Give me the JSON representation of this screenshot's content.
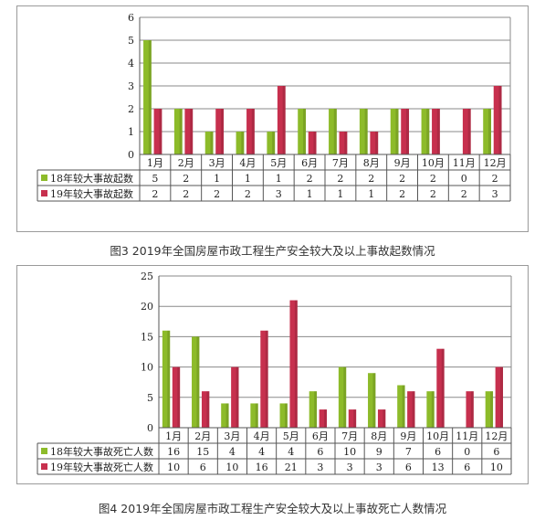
{
  "chart_data": [
    {
      "type": "bar",
      "categories": [
        "1月",
        "2月",
        "3月",
        "4月",
        "5月",
        "6月",
        "7月",
        "8月",
        "9月",
        "10月",
        "11月",
        "12月"
      ],
      "series": [
        {
          "name": "18年较大事故起数",
          "values": [
            5,
            2,
            1,
            1,
            1,
            2,
            2,
            2,
            2,
            2,
            0,
            2
          ],
          "color": "#8dbb2a"
        },
        {
          "name": "19年较大事故起数",
          "values": [
            2,
            2,
            2,
            2,
            3,
            1,
            1,
            1,
            2,
            2,
            2,
            3
          ],
          "color": "#c7304e"
        }
      ],
      "yticks": [
        0,
        1,
        2,
        3,
        4,
        5,
        6
      ],
      "ylim": [
        0,
        6
      ],
      "grid": true,
      "legend": "data-table-below",
      "caption": "图3 2019年全国房屋市政工程生产安全较大及以上事故起数情况"
    },
    {
      "type": "bar",
      "categories": [
        "1月",
        "2月",
        "3月",
        "4月",
        "5月",
        "6月",
        "7月",
        "8月",
        "9月",
        "10月",
        "11月",
        "12月"
      ],
      "series": [
        {
          "name": "18年较大事故死亡人数",
          "values": [
            16,
            15,
            4,
            4,
            4,
            6,
            10,
            9,
            7,
            6,
            0,
            6
          ],
          "color": "#8dbb2a"
        },
        {
          "name": "19年较大事故死亡人数",
          "values": [
            10,
            6,
            10,
            16,
            21,
            3,
            3,
            3,
            6,
            13,
            6,
            10
          ],
          "color": "#c7304e"
        }
      ],
      "yticks": [
        0,
        5,
        10,
        15,
        20,
        25
      ],
      "ylim": [
        0,
        25
      ],
      "grid": true,
      "legend": "data-table-below",
      "caption": "图4 2019年全国房屋市政工程生产安全较大及以上事故死亡人数情况"
    }
  ]
}
